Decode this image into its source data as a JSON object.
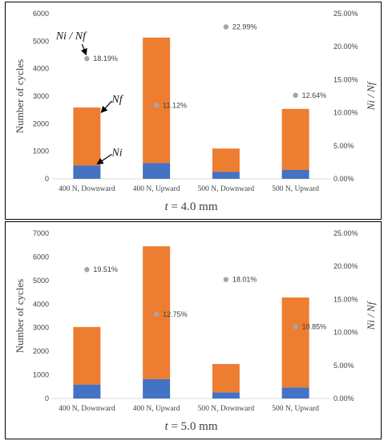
{
  "colors": {
    "nf": "#ED7D31",
    "ni": "#4472C4",
    "ratio": "#A5A5A5",
    "axis": "#D9D9D9",
    "text": "#404040"
  },
  "chart_data": [
    {
      "type": "bar",
      "stacked": true,
      "categories": [
        "400 N, Downward",
        "400 N, Upward",
        "500 N, Downward",
        "500 N, Upward"
      ],
      "series": [
        {
          "name": "Ni",
          "values": [
            480,
            570,
            250,
            320
          ]
        },
        {
          "name": "Nf",
          "values": [
            2590,
            5130,
            1100,
            2540
          ]
        }
      ],
      "ratio": {
        "values": [
          18.19,
          11.12,
          22.99,
          12.64
        ],
        "labels": [
          "18.19%",
          "11.12%",
          "22.99%",
          "12.64%"
        ]
      },
      "ylabel": "Number of cycles",
      "y2label": "Ni / Nf",
      "ylim": [
        0,
        6000
      ],
      "yticks": [
        "0",
        "1000",
        "2000",
        "3000",
        "4000",
        "5000",
        "6000"
      ],
      "y2lim": [
        0,
        25
      ],
      "y2ticks": [
        "0.00%",
        "5.00%",
        "10.00%",
        "15.00%",
        "20.00%",
        "25.00%"
      ],
      "title_prefix": "t",
      "title_rest": " = 4.0 mm",
      "annotations": {
        "ratio": "Ni / Nf",
        "nf": "Nf",
        "ni": "Ni"
      }
    },
    {
      "type": "bar",
      "stacked": true,
      "categories": [
        "400 N, Downward",
        "400 N, Upward",
        "500 N, Downward",
        "500 N, Upward"
      ],
      "series": [
        {
          "name": "Ni",
          "values": [
            590,
            820,
            260,
            465
          ]
        },
        {
          "name": "Nf",
          "values": [
            3030,
            6450,
            1460,
            4280
          ]
        }
      ],
      "ratio": {
        "values": [
          19.51,
          12.75,
          18.01,
          10.85
        ],
        "labels": [
          "19.51%",
          "12.75%",
          "18.01%",
          "10.85%"
        ]
      },
      "ylabel": "Number of cycles",
      "y2label": "Ni / Nf",
      "ylim": [
        0,
        7000
      ],
      "yticks": [
        "0",
        "1000",
        "2000",
        "3000",
        "4000",
        "5000",
        "6000",
        "7000"
      ],
      "y2lim": [
        0,
        25
      ],
      "y2ticks": [
        "0.00%",
        "5.00%",
        "10.00%",
        "15.00%",
        "20.00%",
        "25.00%"
      ],
      "title_prefix": "t",
      "title_rest": " = 5.0 mm"
    }
  ]
}
